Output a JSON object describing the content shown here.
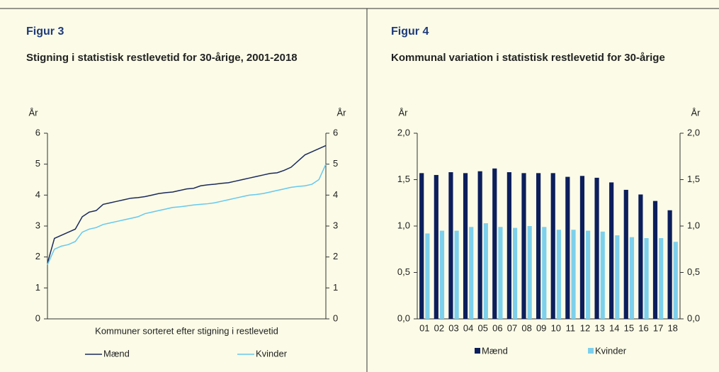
{
  "chart_data": [
    {
      "type": "line",
      "label": "Figur 3",
      "title": "Stigning i statistisk restlevetid for 30-årige, 2001-2018",
      "ylabel": "År",
      "y2label": "År",
      "xlabel": "Kommuner sorteret efter stigning i restlevetid",
      "ylim": [
        0,
        6
      ],
      "yticks": [
        0,
        1,
        2,
        3,
        4,
        5,
        6
      ],
      "y2lim": [
        0,
        6
      ],
      "y2ticks": [
        0,
        1,
        2,
        3,
        4,
        5,
        6
      ],
      "series": [
        {
          "name": "Mænd",
          "color": "#1b2a5c",
          "values": [
            1.8,
            2.6,
            2.7,
            2.8,
            2.9,
            3.3,
            3.45,
            3.5,
            3.7,
            3.75,
            3.8,
            3.85,
            3.9,
            3.92,
            3.95,
            4.0,
            4.05,
            4.08,
            4.1,
            4.15,
            4.2,
            4.22,
            4.3,
            4.33,
            4.35,
            4.38,
            4.4,
            4.45,
            4.5,
            4.55,
            4.6,
            4.65,
            4.7,
            4.72,
            4.8,
            4.9,
            5.1,
            5.3,
            5.4,
            5.5,
            5.6
          ]
        },
        {
          "name": "Kvinder",
          "color": "#66c8ee",
          "values": [
            1.75,
            2.25,
            2.35,
            2.4,
            2.5,
            2.8,
            2.9,
            2.95,
            3.05,
            3.1,
            3.15,
            3.2,
            3.25,
            3.3,
            3.4,
            3.45,
            3.5,
            3.55,
            3.6,
            3.62,
            3.65,
            3.68,
            3.7,
            3.72,
            3.75,
            3.8,
            3.85,
            3.9,
            3.95,
            4.0,
            4.02,
            4.05,
            4.1,
            4.15,
            4.2,
            4.25,
            4.28,
            4.3,
            4.35,
            4.5,
            5.0
          ]
        }
      ]
    },
    {
      "type": "bar",
      "label": "Figur 4",
      "title": "Kommunal variation i statistisk restlevetid for 30-årige",
      "ylabel": "År",
      "y2label": "År",
      "categories": [
        "01",
        "02",
        "03",
        "04",
        "05",
        "06",
        "07",
        "08",
        "09",
        "10",
        "11",
        "12",
        "13",
        "14",
        "15",
        "16",
        "17",
        "18"
      ],
      "ylim": [
        0,
        2
      ],
      "yticks": [
        {
          "value": 0,
          "label": "0,0"
        },
        {
          "value": 0.5,
          "label": "0,5"
        },
        {
          "value": 1,
          "label": "1,0"
        },
        {
          "value": 1.5,
          "label": "1,5"
        },
        {
          "value": 2,
          "label": "2,0"
        }
      ],
      "y2lim": [
        0,
        2
      ],
      "y2ticks": [
        {
          "value": 0,
          "label": "0,0"
        },
        {
          "value": 0.5,
          "label": "0,5"
        },
        {
          "value": 1,
          "label": "1,0"
        },
        {
          "value": 1.5,
          "label": "1,5"
        },
        {
          "value": 2,
          "label": "2,0"
        }
      ],
      "series": [
        {
          "name": "Mænd",
          "color": "#0c1e5b",
          "values": [
            1.57,
            1.55,
            1.58,
            1.57,
            1.59,
            1.62,
            1.58,
            1.57,
            1.57,
            1.57,
            1.53,
            1.54,
            1.52,
            1.47,
            1.39,
            1.34,
            1.27,
            1.17
          ]
        },
        {
          "name": "Kvinder",
          "color": "#7dd0ec",
          "values": [
            0.92,
            0.95,
            0.95,
            0.99,
            1.03,
            0.99,
            0.98,
            1.0,
            0.99,
            0.96,
            0.96,
            0.95,
            0.94,
            0.9,
            0.88,
            0.87,
            0.87,
            0.83
          ]
        }
      ]
    }
  ]
}
